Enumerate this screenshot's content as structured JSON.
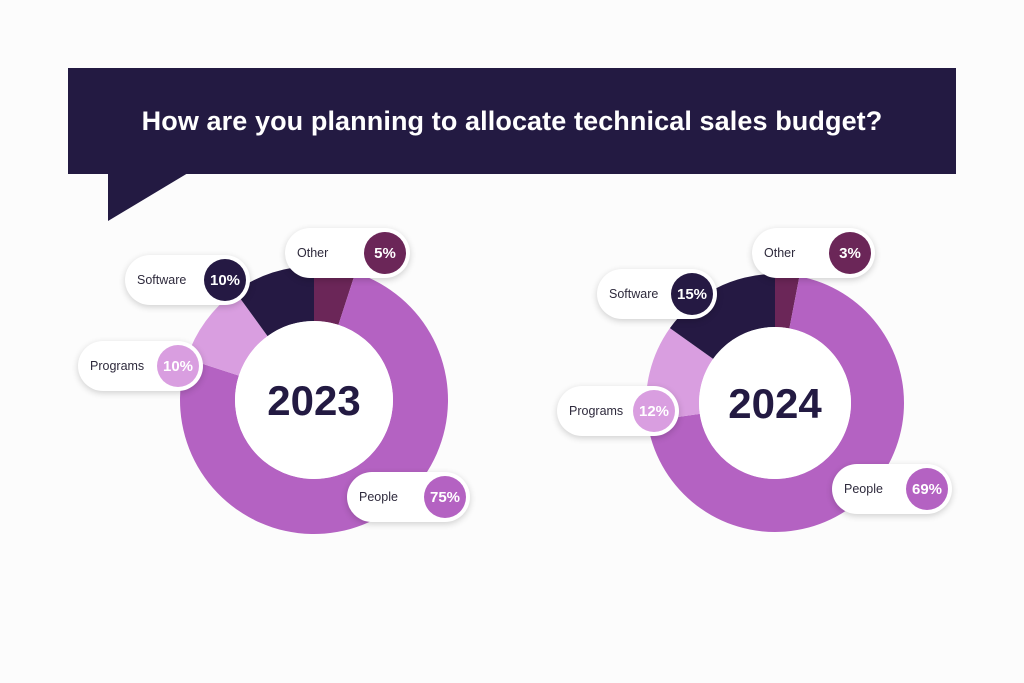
{
  "header": {
    "title": "How are you planning to allocate technical sales budget?",
    "background": "#231a42"
  },
  "colors": {
    "People": "#b462c2",
    "Programs": "#d99ee0",
    "Software": "#251943",
    "Other": "#6b2658"
  },
  "chart_data": [
    {
      "type": "pie",
      "center_label": "2023",
      "categories": [
        "People",
        "Programs",
        "Software",
        "Other"
      ],
      "values": [
        75,
        10,
        10,
        5
      ],
      "value_labels": [
        "75%",
        "10%",
        "10%",
        "5%"
      ]
    },
    {
      "type": "pie",
      "center_label": "2024",
      "categories": [
        "People",
        "Programs",
        "Software",
        "Other"
      ],
      "values": [
        69,
        12,
        15,
        3
      ],
      "value_labels": [
        "69%",
        "12%",
        "15%",
        "3%"
      ]
    }
  ]
}
